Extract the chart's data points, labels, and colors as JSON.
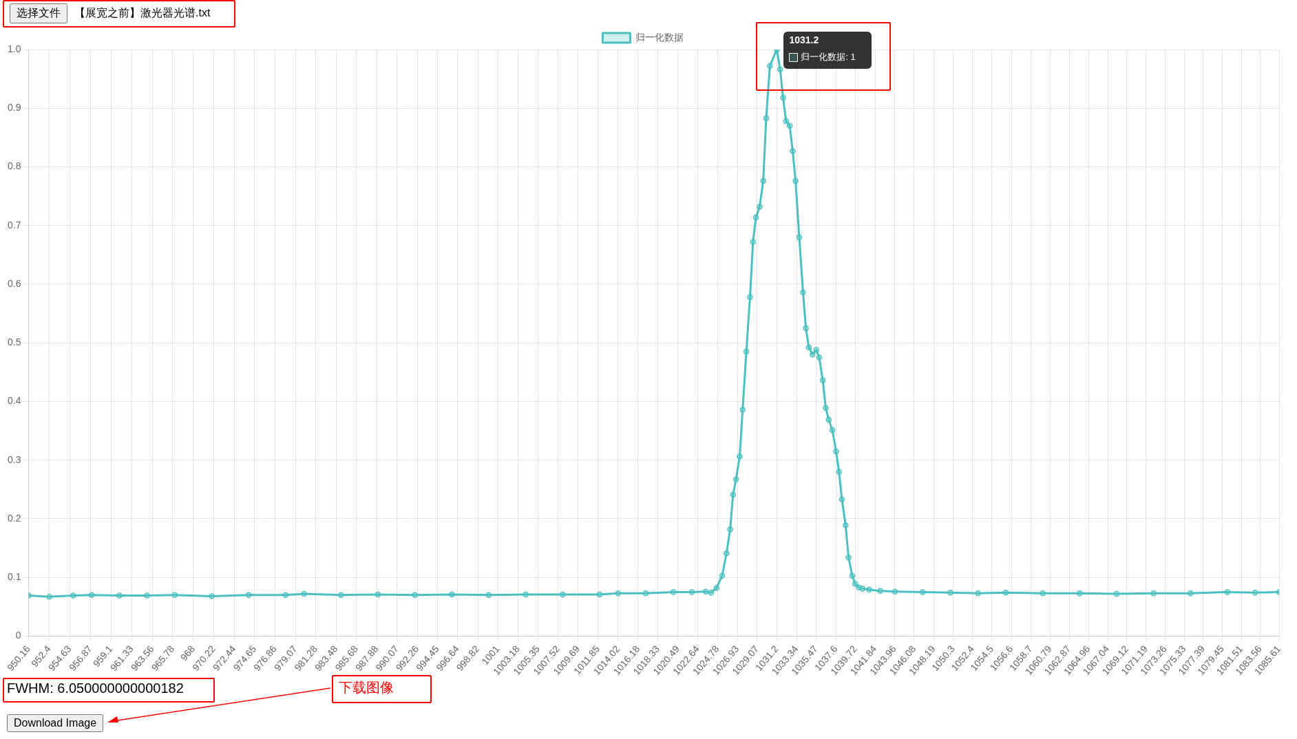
{
  "chart_data": {
    "type": "line",
    "legend": "top",
    "grid": true,
    "marker": "circle",
    "line_style": "solid",
    "xlim": [
      950.16,
      1085.61
    ],
    "xticks": [
      950.16,
      952.4,
      954.63,
      956.87,
      959.1,
      961.33,
      963.56,
      965.78,
      968,
      970.22,
      972.44,
      974.65,
      976.86,
      979.07,
      981.28,
      983.48,
      985.68,
      987.88,
      990.07,
      992.26,
      994.45,
      996.64,
      998.82,
      1001,
      1003.18,
      1005.35,
      1007.52,
      1009.69,
      1011.85,
      1014.02,
      1016.18,
      1018.33,
      1020.49,
      1022.64,
      1024.78,
      1026.93,
      1029.07,
      1031.2,
      1033.34,
      1035.47,
      1037.6,
      1039.72,
      1041.84,
      1043.96,
      1046.08,
      1048.19,
      1050.3,
      1052.4,
      1054.5,
      1056.6,
      1058.7,
      1060.79,
      1062.87,
      1064.96,
      1067.04,
      1069.12,
      1071.19,
      1073.26,
      1075.33,
      1077.39,
      1079.45,
      1081.51,
      1083.56,
      1085.61
    ],
    "ylim": [
      0,
      1
    ],
    "yticks": [
      0,
      0.1,
      0.2,
      0.3,
      0.4,
      0.5,
      0.6,
      0.7,
      0.8,
      0.9,
      {
        "value": 1,
        "label": "1.0"
      }
    ],
    "series": [
      {
        "name": "归一化数据",
        "color": "#4bc0c0",
        "x": [
          950.16,
          952.4,
          955,
          957,
          960,
          963,
          966,
          970,
          974,
          978,
          980,
          984,
          988,
          992,
          996,
          1000,
          1004,
          1008,
          1012,
          1014,
          1017,
          1020,
          1022,
          1023.5,
          1024.08,
          1024.67,
          1025.28,
          1025.75,
          1026.15,
          1026.46,
          1026.78,
          1027.18,
          1027.5,
          1027.9,
          1028.3,
          1028.62,
          1028.94,
          1029.34,
          1029.73,
          1030.05,
          1030.45,
          1031.2,
          1031.56,
          1031.88,
          1032.2,
          1032.6,
          1032.92,
          1033.23,
          1033.63,
          1034.04,
          1034.35,
          1034.67,
          1035.07,
          1035.47,
          1035.79,
          1036.18,
          1036.5,
          1036.82,
          1037.22,
          1037.62,
          1037.94,
          1038.25,
          1038.65,
          1038.97,
          1039.37,
          1039.69,
          1040.09,
          1040.49,
          1041.2,
          1042.4,
          1044,
          1047,
          1050,
          1053,
          1056,
          1060,
          1064,
          1068,
          1072,
          1076,
          1080,
          1083,
          1085.61
        ],
        "values": [
          0.069,
          0.067,
          0.069,
          0.07,
          0.069,
          0.069,
          0.07,
          0.068,
          0.07,
          0.07,
          0.072,
          0.07,
          0.071,
          0.07,
          0.071,
          0.07,
          0.071,
          0.071,
          0.071,
          0.073,
          0.073,
          0.075,
          0.075,
          0.076,
          0.074,
          0.082,
          0.103,
          0.141,
          0.182,
          0.241,
          0.267,
          0.306,
          0.386,
          0.485,
          0.578,
          0.672,
          0.714,
          0.732,
          0.776,
          0.883,
          0.972,
          1,
          0.966,
          0.918,
          0.878,
          0.87,
          0.827,
          0.776,
          0.68,
          0.586,
          0.525,
          0.492,
          0.48,
          0.488,
          0.475,
          0.436,
          0.389,
          0.369,
          0.351,
          0.315,
          0.28,
          0.233,
          0.189,
          0.134,
          0.103,
          0.089,
          0.083,
          0.081,
          0.079,
          0.077,
          0.076,
          0.075,
          0.074,
          0.073,
          0.074,
          0.073,
          0.073,
          0.072,
          0.073,
          0.073,
          0.075,
          0.074,
          0.075
        ]
      }
    ],
    "annotations": [
      "选择文件",
      "【展宽之前】激光器光谱.txt",
      {
        "text": "1031.2",
        "x": 1031.2,
        "y": 1
      },
      {
        "text": "归一化数据: 1",
        "x": 1031.2,
        "y": 1
      },
      "FWHM: 6.050000000000182",
      "下载图像",
      "Download Image"
    ]
  }
}
